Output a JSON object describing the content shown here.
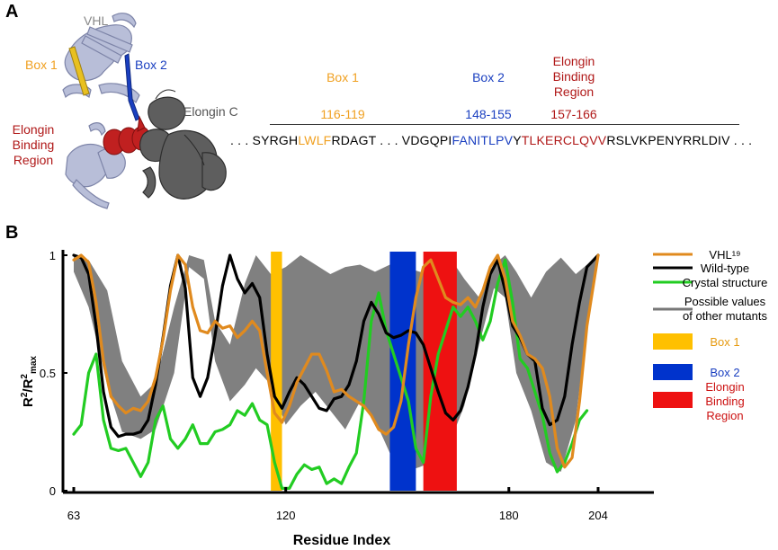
{
  "panel_a": {
    "letter": "A",
    "structure_labels": {
      "vhl": "VHL",
      "box1": "Box 1",
      "box2": "Box 2",
      "elongin_c": "Elongin C",
      "ebr_lines": [
        "Elongin",
        "Binding",
        "Region"
      ]
    },
    "headers": [
      {
        "key": "box1",
        "lines": [
          "Box 1"
        ],
        "range": "116-119",
        "color": "#f0a020"
      },
      {
        "key": "box2",
        "lines": [
          "Box 2"
        ],
        "range": "148-155",
        "color": "#1a3fc0"
      },
      {
        "key": "ebr",
        "lines": [
          "Elongin",
          "Binding",
          "Region"
        ],
        "range": "157-166",
        "color": "#b01818"
      }
    ],
    "sequence": [
      {
        "text": ". . . SYRGH",
        "color": "#000000"
      },
      {
        "text": "LWLF",
        "color": "#f0a020"
      },
      {
        "text": "RDAGT . . .  VDGQPI",
        "color": "#000000"
      },
      {
        "text": "FANITLPV",
        "color": "#1a3fc0"
      },
      {
        "text": "Y",
        "color": "#000000"
      },
      {
        "text": "TLKERCLQVV",
        "color": "#b01818"
      },
      {
        "text": "RSLVKPENYRRLDIV . . .",
        "color": "#000000"
      }
    ]
  },
  "panel_b": {
    "letter": "B"
  },
  "colors": {
    "vhl19": "#e08a1e",
    "wildtype": "#000000",
    "crystal": "#22cc22",
    "band": "#808080",
    "box1": "#ffc000",
    "box2": "#0033cc",
    "ebr": "#ee1111"
  },
  "chart_data": {
    "type": "line",
    "xlabel": "Residue Index",
    "ylabel": "R²/R²max",
    "ylabel_main": "R",
    "ylabel_sup": "2",
    "ylabel_slash": "/R",
    "ylabel_sub": "max",
    "xlim": [
      63,
      204
    ],
    "ylim": [
      0,
      1
    ],
    "x_ticks": [
      "63",
      "120",
      "180",
      "204"
    ],
    "x_tick_values": [
      63,
      120,
      180,
      204
    ],
    "y_ticks": [
      "0",
      "0.5",
      "1"
    ],
    "y_tick_values": [
      0,
      0.5,
      1
    ],
    "regions": [
      {
        "name": "Box 1",
        "from": 116,
        "to": 119,
        "color": "#ffc000"
      },
      {
        "name": "Box 2",
        "from": 148,
        "to": 155,
        "color": "#0033cc"
      },
      {
        "name": "Elongin Binding Region",
        "from": 157,
        "to": 166,
        "color": "#ee1111"
      }
    ],
    "band": {
      "name": "Possible values of other mutants",
      "x": [
        63,
        67,
        72,
        76,
        81,
        85,
        90,
        94,
        98,
        101,
        105,
        109,
        112,
        116,
        120,
        124,
        128,
        132,
        136,
        140,
        144,
        148,
        152,
        156,
        159,
        162,
        165,
        168,
        172,
        176,
        179,
        182,
        186,
        190,
        194,
        198,
        201,
        204
      ],
      "upper": [
        1.0,
        0.98,
        0.85,
        0.55,
        0.4,
        0.46,
        0.78,
        1.0,
        0.98,
        0.72,
        0.62,
        0.88,
        1.0,
        0.92,
        0.95,
        1.0,
        0.96,
        0.92,
        0.95,
        0.96,
        0.93,
        0.96,
        0.95,
        0.93,
        0.92,
        0.94,
        0.97,
        0.9,
        0.82,
        0.96,
        1.0,
        0.93,
        0.82,
        0.93,
        0.99,
        0.92,
        0.96,
        1.0
      ],
      "lower": [
        0.93,
        0.78,
        0.45,
        0.25,
        0.22,
        0.26,
        0.5,
        0.95,
        0.9,
        0.55,
        0.38,
        0.45,
        0.52,
        0.45,
        0.28,
        0.36,
        0.42,
        0.34,
        0.26,
        0.38,
        0.3,
        0.16,
        0.08,
        0.1,
        0.12,
        0.2,
        0.24,
        0.36,
        0.62,
        0.86,
        0.82,
        0.5,
        0.34,
        0.12,
        0.08,
        0.3,
        0.7,
        1.0
      ]
    },
    "series": [
      {
        "name": "VHL¹⁹",
        "color": "#e08a1e",
        "x": [
          63,
          65,
          67,
          69,
          71,
          73,
          75,
          77,
          79,
          81,
          83,
          85,
          87,
          89,
          91,
          93,
          95,
          97,
          99,
          101,
          103,
          105,
          107,
          109,
          111,
          113,
          115,
          117,
          119,
          121,
          123,
          125,
          127,
          129,
          131,
          133,
          135,
          137,
          139,
          141,
          143,
          145,
          147,
          149,
          151,
          153,
          155,
          157,
          159,
          161,
          163,
          165,
          167,
          169,
          171,
          173,
          175,
          177,
          179,
          181,
          183,
          185,
          187,
          189,
          191,
          193,
          195,
          197,
          199,
          201,
          204
        ],
        "y": [
          0.98,
          1.0,
          0.97,
          0.8,
          0.55,
          0.4,
          0.36,
          0.33,
          0.35,
          0.34,
          0.38,
          0.48,
          0.64,
          0.85,
          1.0,
          0.96,
          0.78,
          0.68,
          0.67,
          0.72,
          0.69,
          0.7,
          0.65,
          0.68,
          0.72,
          0.68,
          0.5,
          0.33,
          0.29,
          0.36,
          0.46,
          0.52,
          0.58,
          0.58,
          0.51,
          0.42,
          0.43,
          0.4,
          0.38,
          0.36,
          0.32,
          0.26,
          0.24,
          0.27,
          0.38,
          0.62,
          0.82,
          0.95,
          0.98,
          0.9,
          0.82,
          0.8,
          0.79,
          0.82,
          0.78,
          0.85,
          0.95,
          1.0,
          0.9,
          0.72,
          0.66,
          0.58,
          0.56,
          0.52,
          0.4,
          0.18,
          0.1,
          0.14,
          0.38,
          0.7,
          1.0
        ]
      },
      {
        "name": "Wild-type",
        "color": "#000000",
        "x": [
          63,
          65,
          67,
          69,
          71,
          73,
          75,
          77,
          79,
          81,
          83,
          85,
          87,
          89,
          91,
          93,
          95,
          97,
          99,
          101,
          103,
          105,
          107,
          109,
          111,
          113,
          115,
          117,
          119,
          121,
          123,
          125,
          127,
          129,
          131,
          133,
          135,
          137,
          139,
          141,
          143,
          145,
          147,
          149,
          151,
          153,
          155,
          157,
          159,
          161,
          163,
          165,
          167,
          169,
          171,
          173,
          175,
          177,
          179,
          181,
          183,
          185,
          187,
          189,
          191,
          193,
          195,
          197,
          199,
          201,
          204
        ],
        "y": [
          1.0,
          0.99,
          0.92,
          0.7,
          0.42,
          0.27,
          0.23,
          0.24,
          0.24,
          0.25,
          0.3,
          0.45,
          0.65,
          0.87,
          1.0,
          0.86,
          0.48,
          0.4,
          0.48,
          0.66,
          0.87,
          1.0,
          0.9,
          0.84,
          0.88,
          0.82,
          0.58,
          0.4,
          0.35,
          0.42,
          0.48,
          0.45,
          0.4,
          0.35,
          0.34,
          0.39,
          0.4,
          0.45,
          0.55,
          0.72,
          0.8,
          0.75,
          0.67,
          0.65,
          0.66,
          0.68,
          0.67,
          0.62,
          0.52,
          0.42,
          0.33,
          0.3,
          0.34,
          0.44,
          0.58,
          0.78,
          0.92,
          0.98,
          0.85,
          0.7,
          0.65,
          0.58,
          0.55,
          0.35,
          0.28,
          0.3,
          0.4,
          0.62,
          0.8,
          0.95,
          1.0
        ]
      },
      {
        "name": "Crystal structure",
        "color": "#22cc22",
        "x": [
          63,
          65,
          67,
          69,
          71,
          73,
          75,
          77,
          79,
          81,
          83,
          85,
          87,
          89,
          91,
          93,
          95,
          97,
          99,
          101,
          103,
          105,
          107,
          109,
          111,
          113,
          115,
          117,
          119,
          121,
          123,
          125,
          127,
          129,
          131,
          133,
          135,
          137,
          139,
          141,
          143,
          145,
          147,
          149,
          151,
          153,
          155,
          157,
          159,
          161,
          163,
          165,
          167,
          169,
          171,
          173,
          175,
          177,
          179,
          181,
          183,
          185,
          187,
          189,
          191,
          193,
          195,
          197,
          199,
          201
        ],
        "y": [
          0.24,
          0.28,
          0.5,
          0.58,
          0.3,
          0.18,
          0.17,
          0.18,
          0.12,
          0.06,
          0.12,
          0.3,
          0.36,
          0.22,
          0.18,
          0.22,
          0.28,
          0.2,
          0.2,
          0.25,
          0.26,
          0.28,
          0.34,
          0.32,
          0.37,
          0.3,
          0.28,
          0.12,
          0.01,
          0.01,
          0.07,
          0.11,
          0.09,
          0.1,
          0.03,
          0.05,
          0.03,
          0.1,
          0.16,
          0.38,
          0.72,
          0.84,
          0.68,
          0.58,
          0.48,
          0.38,
          0.18,
          0.12,
          0.4,
          0.58,
          0.68,
          0.78,
          0.74,
          0.78,
          0.72,
          0.64,
          0.72,
          0.88,
          0.98,
          0.8,
          0.56,
          0.52,
          0.42,
          0.32,
          0.16,
          0.08,
          0.12,
          0.2,
          0.3,
          0.34
        ]
      }
    ],
    "legend": {
      "placement": "right",
      "items": [
        {
          "type": "line",
          "color": "#e08a1e",
          "label_lines": [
            "VHL¹⁹"
          ]
        },
        {
          "type": "line",
          "color": "#000000",
          "label_lines": [
            "Wild-type"
          ]
        },
        {
          "type": "line",
          "color": "#22cc22",
          "label_lines": [
            "Crystal structure"
          ]
        },
        {
          "type": "line",
          "color": "#777777",
          "label_lines": [
            "Possible values",
            "of other mutants"
          ]
        },
        {
          "type": "swatch",
          "color": "#ffc000",
          "label_lines": [
            "Box 1"
          ],
          "text_color": "#e69a10"
        },
        {
          "type": "swatch",
          "color": "#0033cc",
          "label_lines": [
            "Box 2"
          ],
          "text_color": "#1a3fc0"
        },
        {
          "type": "swatch",
          "color": "#ee1111",
          "label_lines": [
            "Elongin",
            "Binding",
            "Region"
          ],
          "text_color": "#cc1111"
        }
      ]
    }
  }
}
